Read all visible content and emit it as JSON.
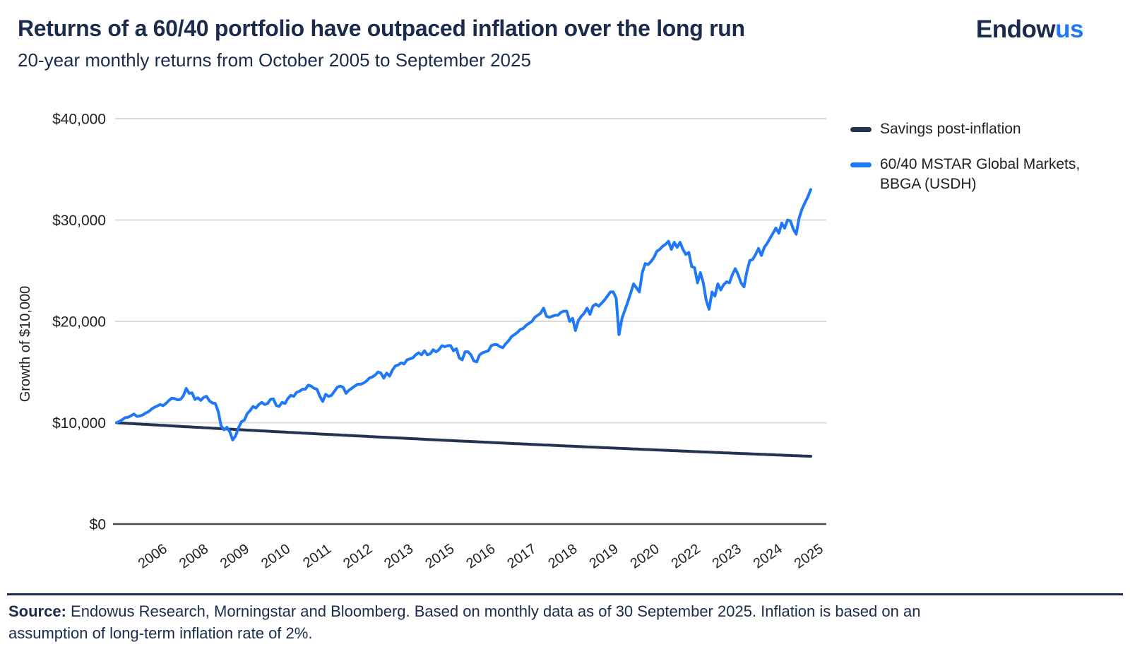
{
  "header": {
    "title": "Returns of a 60/40 portfolio have outpaced inflation over the long run",
    "subtitle": "20-year monthly returns from October 2005 to September 2025"
  },
  "logo": {
    "primary": "Endow",
    "accent": "us"
  },
  "colors": {
    "navy_text": "#1b2b4c",
    "line_navy": "#243450",
    "line_blue": "#1f78f5",
    "gridline": "#d9d9d9",
    "axis": "#4a4a4a",
    "tick_text": "#212121",
    "logo_accent": "#2178f4"
  },
  "legend": {
    "items": [
      {
        "label": "Savings post-inflation",
        "color": "#243450"
      },
      {
        "label": "60/40 MSTAR Global Markets, BBGA (USDH)",
        "color": "#1f78f5"
      }
    ]
  },
  "chart_data": {
    "type": "line",
    "title": "Returns of a 60/40 portfolio have outpaced inflation over the long run",
    "subtitle": "20-year monthly returns from October 2005 to September 2025",
    "ylabel": "Growth of $10,000",
    "xlabel": "",
    "ylim": [
      0,
      40000
    ],
    "grid": "horizontal",
    "legend_position": "right",
    "x_unit": "month",
    "x_start": "October 2005",
    "x_end": "September 2025",
    "points_per_series": 240,
    "y_ticks": [
      {
        "value": 0,
        "label": "$0"
      },
      {
        "value": 10000,
        "label": "$10,000"
      },
      {
        "value": 20000,
        "label": "$20,000"
      },
      {
        "value": 30000,
        "label": "$30,000"
      },
      {
        "value": 40000,
        "label": "$40,000"
      }
    ],
    "x_tick_labels": [
      "2006",
      "2008",
      "2009",
      "2010",
      "2011",
      "2012",
      "2013",
      "2015",
      "2016",
      "2017",
      "2018",
      "2019",
      "2020",
      "2022",
      "2023",
      "2024",
      "2025"
    ],
    "series": [
      {
        "name": "Savings post-inflation",
        "color": "#243450",
        "start_value": 10000,
        "end_value": 6676,
        "annual_inflation_rate_pct": 2,
        "generated_from_rate": true
      },
      {
        "name": "60/40 MSTAR Global Markets, BBGA (USDH)",
        "color": "#1f78f5",
        "values": [
          10000,
          10140,
          10290,
          10500,
          10540,
          10690,
          10860,
          10620,
          10660,
          10760,
          10950,
          11090,
          11330,
          11520,
          11640,
          11800,
          11680,
          11890,
          12180,
          12420,
          12380,
          12250,
          12300,
          12650,
          13380,
          12900,
          12950,
          12300,
          12450,
          12200,
          12500,
          12600,
          12150,
          11950,
          11900,
          11100,
          9700,
          9300,
          9550,
          9100,
          8300,
          8700,
          9500,
          10100,
          10250,
          10900,
          11200,
          11600,
          11450,
          11800,
          12000,
          11800,
          11900,
          12300,
          12350,
          11700,
          11600,
          12000,
          11900,
          12400,
          12700,
          12600,
          13000,
          13100,
          13300,
          13300,
          13700,
          13600,
          13400,
          13300,
          12600,
          12100,
          12800,
          12600,
          12700,
          13100,
          13500,
          13600,
          13500,
          12900,
          13200,
          13400,
          13600,
          13800,
          13800,
          13900,
          14100,
          14400,
          14500,
          14700,
          15000,
          14900,
          14400,
          14900,
          14600,
          15200,
          15600,
          15700,
          15900,
          15800,
          16200,
          16300,
          16400,
          16700,
          16900,
          16700,
          17100,
          16700,
          16800,
          17200,
          17000,
          17200,
          17600,
          17500,
          17600,
          17600,
          17100,
          17300,
          16400,
          16200,
          17000,
          17000,
          16700,
          16100,
          16000,
          16700,
          16900,
          17000,
          17100,
          17600,
          17700,
          17700,
          17500,
          17400,
          17800,
          18100,
          18500,
          18700,
          18900,
          19200,
          19300,
          19600,
          19800,
          20000,
          20400,
          20600,
          20800,
          21300,
          20500,
          20400,
          20500,
          20600,
          20600,
          20900,
          21000,
          21000,
          20000,
          20300,
          19100,
          20100,
          20500,
          20800,
          21300,
          20700,
          21500,
          21700,
          21500,
          21800,
          22100,
          22500,
          22900,
          22900,
          22300,
          18700,
          20300,
          21100,
          21900,
          22800,
          23700,
          23300,
          22900,
          24800,
          25700,
          25600,
          25900,
          26300,
          26900,
          27100,
          27400,
          27600,
          27900,
          27100,
          27800,
          27300,
          27800,
          27100,
          26600,
          26800,
          25400,
          25300,
          23800,
          24800,
          23800,
          22100,
          21200,
          22900,
          22500,
          23700,
          23100,
          23600,
          23900,
          23800,
          24600,
          25200,
          24600,
          23800,
          23400,
          24900,
          26000,
          26100,
          26600,
          27200,
          26500,
          27300,
          27700,
          28200,
          28700,
          29200,
          28700,
          29700,
          29200,
          30000,
          29900,
          29100,
          28600,
          30200,
          31100,
          31700,
          32300,
          33000
        ]
      }
    ]
  },
  "footer": {
    "source_label": "Source:",
    "source_line1": " Endowus Research, Morningstar and Bloomberg. Based on monthly data as of 30 September 2025. Inflation is based on an",
    "source_line2": "assumption of long-term inflation rate of 2%."
  }
}
